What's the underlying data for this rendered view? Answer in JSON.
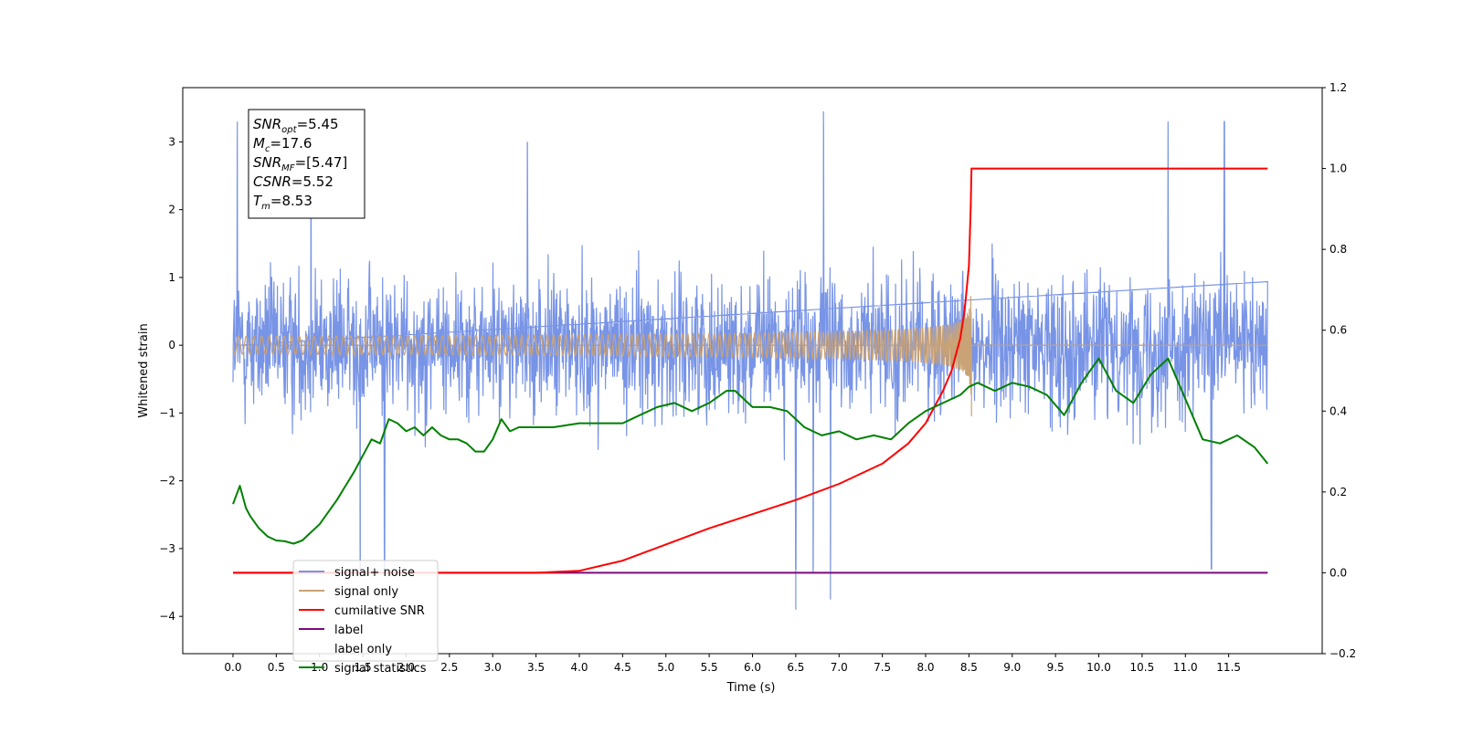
{
  "chart_data": {
    "type": "line",
    "title": "",
    "xlabel": "Time (s)",
    "ylabel": "Whitened strain",
    "y2label": "",
    "xlim": [
      -0.58,
      12.58
    ],
    "ylim": [
      -4.55,
      3.8
    ],
    "y2lim": [
      -0.2,
      1.2
    ],
    "grid": false,
    "legend_position": "lower-left",
    "x_ticks": [
      "0.0",
      "0.5",
      "1.0",
      "1.5",
      "2.0",
      "2.5",
      "3.0",
      "3.5",
      "4.0",
      "4.5",
      "5.0",
      "5.5",
      "6.0",
      "6.5",
      "7.0",
      "7.5",
      "8.0",
      "8.5",
      "9.0",
      "9.5",
      "10.0",
      "10.5",
      "11.0",
      "11.5"
    ],
    "y_ticks": [
      "3",
      "2",
      "1",
      "0",
      "−1",
      "−2",
      "−3",
      "−4"
    ],
    "y2_ticks": [
      "1.2",
      "1.0",
      "0.8",
      "0.6",
      "0.4",
      "0.2",
      "0.0",
      "−0.2"
    ],
    "annotation": {
      "lines": [
        {
          "base": "SNR",
          "sub": "opt",
          "value": "=5.45"
        },
        {
          "base": "M",
          "sub": "c",
          "value": "=17.6"
        },
        {
          "base": "SNR",
          "sub": "MF",
          "value": "=[5.47]"
        },
        {
          "base": "CSNR",
          "sub": "",
          "value": "=5.52"
        },
        {
          "base": "T",
          "sub": "m",
          "value": "=8.53"
        }
      ]
    },
    "series": [
      {
        "name": "signal+ noise",
        "color": "#7894e6",
        "axis": "left",
        "kind": "noise",
        "x_range": [
          0.0,
          11.95
        ],
        "envelope_typical": [
          -1.5,
          1.5
        ],
        "extremes": [
          {
            "x": 0.05,
            "y": 3.3
          },
          {
            "x": 0.9,
            "y": 2.9
          },
          {
            "x": 1.47,
            "y": -3.4
          },
          {
            "x": 1.75,
            "y": -3.3
          },
          {
            "x": 3.4,
            "y": 3.0
          },
          {
            "x": 6.5,
            "y": -3.9
          },
          {
            "x": 6.7,
            "y": -3.35
          },
          {
            "x": 6.82,
            "y": 3.45
          },
          {
            "x": 6.9,
            "y": -3.75
          },
          {
            "x": 10.8,
            "y": 3.3
          },
          {
            "x": 11.3,
            "y": -3.3
          },
          {
            "x": 11.45,
            "y": 3.3
          }
        ]
      },
      {
        "name": "signal only",
        "color": "#c9a276",
        "axis": "left",
        "kind": "chirp",
        "x_range": [
          0.0,
          8.53
        ],
        "amplitude_peak": 0.9,
        "merger_time": 8.53
      },
      {
        "name": "cumilative SNR",
        "color": "#ff0000",
        "axis": "right",
        "x": [
          0,
          3.5,
          4.0,
          4.5,
          5.0,
          5.5,
          6.0,
          6.5,
          7.0,
          7.5,
          7.8,
          8.0,
          8.2,
          8.3,
          8.4,
          8.45,
          8.5,
          8.52,
          8.53,
          9.0,
          10.0,
          11.0,
          11.95
        ],
        "y": [
          0.0,
          0.0,
          0.005,
          0.03,
          0.07,
          0.11,
          0.145,
          0.18,
          0.22,
          0.27,
          0.32,
          0.37,
          0.45,
          0.5,
          0.58,
          0.65,
          0.76,
          0.9,
          1.0,
          1.0,
          1.0,
          1.0,
          1.0
        ]
      },
      {
        "name": "label",
        "color": "#7b0a7b",
        "axis": "right",
        "x": [
          0,
          11.95
        ],
        "y": [
          0.0,
          0.0
        ]
      },
      {
        "name": "label only",
        "color": "#ffffff",
        "axis": "right",
        "x": [],
        "y": []
      },
      {
        "name": "signal statistics",
        "color": "#008000",
        "axis": "right",
        "x": [
          0.0,
          0.08,
          0.15,
          0.2,
          0.3,
          0.4,
          0.5,
          0.6,
          0.7,
          0.8,
          0.9,
          1.0,
          1.2,
          1.4,
          1.6,
          1.7,
          1.8,
          1.9,
          2.0,
          2.1,
          2.2,
          2.3,
          2.4,
          2.5,
          2.6,
          2.7,
          2.8,
          2.9,
          3.0,
          3.1,
          3.2,
          3.3,
          3.5,
          3.7,
          4.0,
          4.2,
          4.5,
          4.7,
          4.9,
          5.1,
          5.3,
          5.5,
          5.7,
          5.8,
          6.0,
          6.2,
          6.4,
          6.6,
          6.8,
          7.0,
          7.2,
          7.4,
          7.6,
          7.8,
          8.0,
          8.2,
          8.4,
          8.5,
          8.6,
          8.8,
          9.0,
          9.2,
          9.4,
          9.6,
          9.8,
          10.0,
          10.2,
          10.4,
          10.6,
          10.8,
          11.0,
          11.2,
          11.4,
          11.6,
          11.8,
          11.95
        ],
        "y": [
          0.17,
          0.215,
          0.16,
          0.14,
          0.11,
          0.09,
          0.08,
          0.078,
          0.072,
          0.08,
          0.1,
          0.12,
          0.18,
          0.25,
          0.33,
          0.32,
          0.38,
          0.37,
          0.35,
          0.36,
          0.34,
          0.36,
          0.34,
          0.33,
          0.33,
          0.32,
          0.3,
          0.3,
          0.33,
          0.38,
          0.35,
          0.36,
          0.36,
          0.36,
          0.37,
          0.37,
          0.37,
          0.39,
          0.41,
          0.42,
          0.4,
          0.42,
          0.45,
          0.45,
          0.41,
          0.41,
          0.4,
          0.36,
          0.34,
          0.35,
          0.33,
          0.34,
          0.33,
          0.37,
          0.4,
          0.42,
          0.44,
          0.46,
          0.47,
          0.45,
          0.47,
          0.46,
          0.44,
          0.39,
          0.47,
          0.53,
          0.45,
          0.42,
          0.49,
          0.53,
          0.43,
          0.33,
          0.32,
          0.34,
          0.31,
          0.27
        ]
      }
    ]
  }
}
